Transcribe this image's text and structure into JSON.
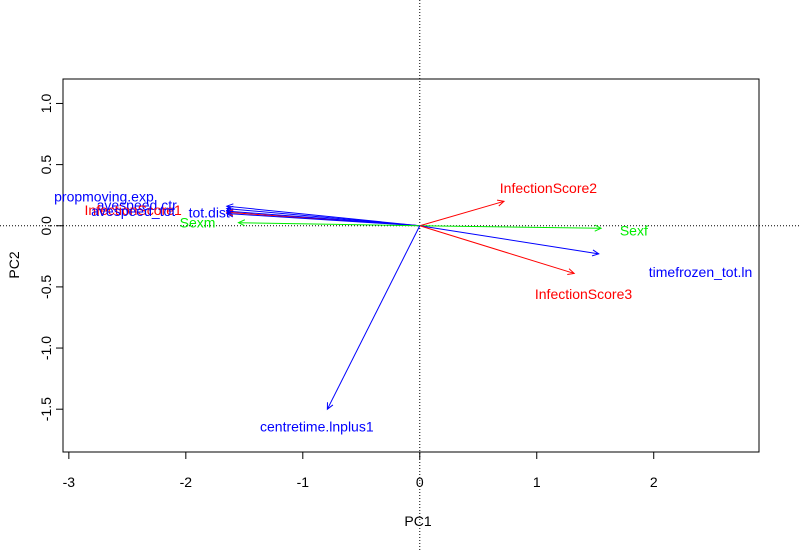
{
  "chart_data": {
    "type": "scatter",
    "title": "",
    "xlabel": "PC1",
    "ylabel": "PC2",
    "xlim": [
      -3.05,
      2.9
    ],
    "ylim": [
      -1.85,
      1.2
    ],
    "x_ticks": [
      -3,
      -2,
      -1,
      0,
      1,
      2
    ],
    "x_tick_labels": [
      "-3",
      "-2",
      "-1",
      "0",
      "1",
      "2"
    ],
    "y_ticks": [
      -1.5,
      -1.0,
      -0.5,
      0.0,
      0.5,
      1.0
    ],
    "y_tick_labels": [
      "-1.5",
      "-1.0",
      "-0.5",
      "0.0",
      "0.5",
      "1.0"
    ],
    "reference_lines": {
      "x": 0,
      "y": 0,
      "style": "dotted"
    },
    "grid": false,
    "legend": "none",
    "vectors": [
      {
        "label": "propmoving.exp",
        "x": -1.65,
        "y": 0.16,
        "label_x": -2.7,
        "label_y": 0.24,
        "color": "#0000ff"
      },
      {
        "label": "avespeed.ctr",
        "x": -1.65,
        "y": 0.14,
        "label_x": -2.42,
        "label_y": 0.17,
        "color": "#0000ff"
      },
      {
        "label": "InfectionScore1",
        "x": -1.65,
        "y": 0.11,
        "label_x": -2.45,
        "label_y": 0.13,
        "color": "#ff0000"
      },
      {
        "label": "avespeed_tot",
        "x": -1.65,
        "y": 0.12,
        "label_x": -2.45,
        "label_y": 0.12,
        "color": "#0000ff"
      },
      {
        "label": "tot.dist",
        "x": -1.65,
        "y": 0.1,
        "label_x": -1.8,
        "label_y": 0.11,
        "color": "#0000ff"
      },
      {
        "label": "Sexm",
        "x": -1.55,
        "y": 0.025,
        "label_x": -1.9,
        "label_y": 0.025,
        "color": "#00ee00"
      },
      {
        "label": "InfectionScore2",
        "x": 0.72,
        "y": 0.2,
        "label_x": 1.1,
        "label_y": 0.31,
        "color": "#ff0000"
      },
      {
        "label": "Sexf",
        "x": 1.55,
        "y": -0.02,
        "label_x": 1.83,
        "label_y": -0.04,
        "color": "#00ee00"
      },
      {
        "label": "timefrozen_tot.ln",
        "x": 1.53,
        "y": -0.23,
        "label_x": 2.4,
        "label_y": -0.38,
        "color": "#0000ff"
      },
      {
        "label": "InfectionScore3",
        "x": 1.32,
        "y": -0.39,
        "label_x": 1.4,
        "label_y": -0.56,
        "color": "#ff0000"
      },
      {
        "label": "centretime.lnplus1",
        "x": -0.79,
        "y": -1.5,
        "label_x": -0.88,
        "label_y": -1.64,
        "color": "#0000ff"
      }
    ]
  }
}
